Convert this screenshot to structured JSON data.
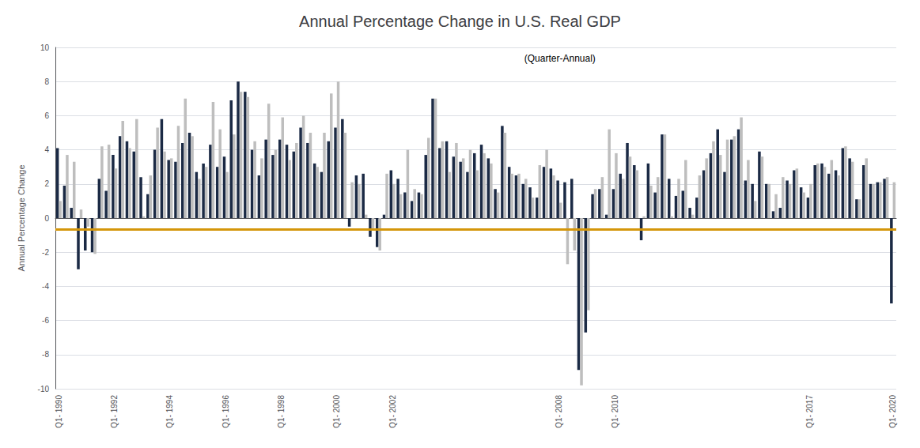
{
  "chart_data": {
    "type": "bar",
    "title": "Annual Percentage Change in U.S. Real GDP",
    "subtitle": "(Quarter-Annual)",
    "ylabel": "Annual Percentage Change",
    "ylim": [
      -10,
      10
    ],
    "yticks": [
      -10,
      -8,
      -6,
      -4,
      -2,
      0,
      2,
      4,
      6,
      8,
      10
    ],
    "grid": true,
    "reference_line": {
      "value": -0.65,
      "color": "#D4960A"
    },
    "categories": [
      "Q1- 1990",
      null,
      null,
      null,
      null,
      null,
      null,
      null,
      "Q1- 1992",
      null,
      null,
      null,
      null,
      null,
      null,
      null,
      "Q1- 1994",
      null,
      null,
      null,
      null,
      null,
      null,
      null,
      "Q1- 1996",
      null,
      null,
      null,
      null,
      null,
      null,
      null,
      "Q1- 1998",
      null,
      null,
      null,
      null,
      null,
      null,
      null,
      "Q1- 2000",
      null,
      null,
      null,
      null,
      null,
      null,
      null,
      "Q1- 2002",
      null,
      null,
      null,
      null,
      null,
      null,
      null,
      null,
      null,
      null,
      null,
      null,
      null,
      null,
      null,
      null,
      null,
      null,
      null,
      null,
      null,
      null,
      null,
      "Q1- 2008",
      null,
      null,
      null,
      null,
      null,
      null,
      null,
      "Q1- 2010",
      null,
      null,
      null,
      null,
      null,
      null,
      null,
      null,
      null,
      null,
      null,
      null,
      null,
      null,
      null,
      null,
      null,
      null,
      null,
      null,
      null,
      null,
      null,
      null,
      null,
      null,
      null,
      "Q1- 2017",
      null,
      null,
      null,
      null,
      null,
      null,
      null,
      null,
      null,
      null,
      null,
      "Q1- 2020"
    ],
    "series": [
      {
        "color": "#1B2A45",
        "values": [
          4.1,
          1.9,
          0.6,
          -3.0,
          -1.9,
          -2.0,
          2.3,
          1.6,
          3.7,
          4.8,
          4.5,
          3.9,
          2.4,
          1.4,
          4.0,
          5.8,
          3.4,
          3.3,
          4.4,
          5.0,
          2.7,
          3.2,
          4.3,
          3.0,
          3.6,
          6.9,
          8.0,
          7.4,
          4.0,
          2.5,
          4.6,
          3.7,
          4.6,
          4.3,
          3.9,
          5.3,
          4.4,
          3.2,
          2.7,
          4.5,
          5.3,
          5.8,
          -0.5,
          2.5,
          2.6,
          -1.1,
          -1.7,
          0.2,
          2.8,
          2.3,
          1.5,
          1.0,
          1.5,
          3.7,
          7.0,
          4.1,
          4.5,
          3.6,
          3.3,
          2.7,
          3.8,
          4.3,
          3.5,
          1.7,
          5.4,
          3.0,
          2.5,
          2.0,
          1.8,
          1.2,
          3.0,
          2.9,
          2.2,
          2.1,
          2.3,
          -8.9,
          -6.7,
          1.4,
          1.7,
          0.2,
          1.7,
          2.6,
          4.4,
          3.1,
          -1.3,
          3.2,
          1.5,
          4.9,
          2.3,
          1.3,
          1.6,
          0.6,
          1.2,
          2.8,
          3.8,
          5.2,
          2.7,
          4.6,
          5.2,
          2.2,
          2.0,
          3.9,
          2.0,
          0.4,
          0.6,
          2.2,
          2.8,
          1.8,
          1.2,
          3.1,
          3.2,
          2.6,
          2.8,
          4.1,
          3.5,
          1.1,
          3.1,
          2.0,
          2.1,
          2.3,
          -5.0
        ]
      },
      {
        "color": "#BEBEBE",
        "values": [
          1.0,
          3.7,
          3.3,
          0.5,
          -0.5,
          -2.1,
          4.2,
          4.3,
          2.9,
          5.7,
          4.1,
          5.8,
          0.1,
          2.5,
          5.3,
          3.9,
          3.5,
          5.4,
          7.0,
          4.8,
          2.3,
          3.0,
          6.8,
          5.2,
          2.7,
          4.9,
          7.4,
          7.1,
          4.5,
          3.5,
          6.7,
          4.0,
          5.9,
          3.4,
          4.4,
          6.0,
          5.0,
          3.0,
          5.0,
          7.3,
          8.0,
          5.0,
          2.1,
          2.0,
          0.2,
          -0.7,
          -1.9,
          2.6,
          2.0,
          1.4,
          4.0,
          1.7,
          1.4,
          4.7,
          7.0,
          4.5,
          2.7,
          4.4,
          3.5,
          4.0,
          2.8,
          3.8,
          3.2,
          1.5,
          5.0,
          2.6,
          2.6,
          2.3,
          1.2,
          3.1,
          4.0,
          2.5,
          0.9,
          -2.7,
          -1.9,
          -9.8,
          -5.4,
          1.7,
          2.4,
          5.2,
          3.8,
          2.3,
          3.6,
          2.8,
          0.1,
          1.9,
          2.4,
          4.9,
          0.1,
          2.3,
          3.4,
          0.2,
          2.5,
          3.5,
          4.5,
          3.7,
          4.6,
          4.8,
          5.9,
          3.4,
          1.0,
          3.6,
          2.0,
          1.4,
          2.4,
          2.0,
          2.9,
          1.5,
          2.0,
          3.2,
          3.0,
          3.4,
          2.5,
          4.2,
          3.3,
          1.1,
          3.5,
          2.0,
          2.1,
          2.4,
          2.1
        ]
      }
    ]
  }
}
